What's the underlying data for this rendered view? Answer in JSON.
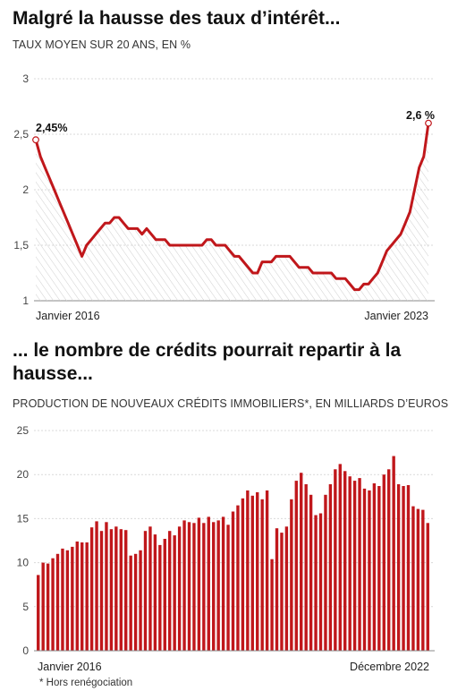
{
  "chart_data": [
    {
      "type": "area",
      "title": "Malgré la hausse des taux d’intérêt...",
      "subtitle": "TAUX MOYEN SUR 20 ANS, EN %",
      "ylim": [
        1,
        3
      ],
      "y_ticks": [
        "3",
        "2,5",
        "2",
        "1,5",
        "1"
      ],
      "x_tick_labels": [
        "Janvier 2016",
        "Janvier 2023"
      ],
      "grid": true,
      "color": "#c0171b",
      "data_labels": {
        "first": "2,45%",
        "last": "2,6 %"
      },
      "series": [
        {
          "values": [
            2.45,
            2.3,
            2.2,
            2.1,
            2.0,
            1.9,
            1.8,
            1.7,
            1.6,
            1.5,
            1.4,
            1.5,
            1.55,
            1.6,
            1.65,
            1.7,
            1.7,
            1.75,
            1.75,
            1.7,
            1.65,
            1.65,
            1.65,
            1.6,
            1.65,
            1.6,
            1.55,
            1.55,
            1.55,
            1.5,
            1.5,
            1.5,
            1.5,
            1.5,
            1.5,
            1.5,
            1.5,
            1.55,
            1.55,
            1.5,
            1.5,
            1.5,
            1.45,
            1.4,
            1.4,
            1.35,
            1.3,
            1.25,
            1.25,
            1.35,
            1.35,
            1.35,
            1.4,
            1.4,
            1.4,
            1.4,
            1.35,
            1.3,
            1.3,
            1.3,
            1.25,
            1.25,
            1.25,
            1.25,
            1.25,
            1.2,
            1.2,
            1.2,
            1.15,
            1.1,
            1.1,
            1.15,
            1.15,
            1.2,
            1.25,
            1.35,
            1.45,
            1.5,
            1.55,
            1.6,
            1.7,
            1.8,
            2.0,
            2.2,
            2.3,
            2.6
          ]
        }
      ]
    },
    {
      "type": "bar",
      "title": "... le nombre de crédits pourrait repartir à la hausse...",
      "subtitle": "PRODUCTION DE NOUVEAUX CRÉDITS IMMOBILIERS*, EN MILLIARDS D’EUROS",
      "ylim": [
        0,
        25
      ],
      "y_ticks": [
        "25",
        "20",
        "15",
        "10",
        "5",
        "0"
      ],
      "x_tick_labels": [
        "Janvier 2016",
        "Décembre 2022"
      ],
      "grid": true,
      "color": "#c0171b",
      "series": [
        {
          "values": [
            8.6,
            10.0,
            9.9,
            10.5,
            11.0,
            11.6,
            11.4,
            11.8,
            12.4,
            12.3,
            12.3,
            14.0,
            14.7,
            13.6,
            14.6,
            13.8,
            14.1,
            13.8,
            13.7,
            10.8,
            11.0,
            11.4,
            13.6,
            14.1,
            13.2,
            12.0,
            12.7,
            13.6,
            13.1,
            14.1,
            14.8,
            14.6,
            14.5,
            15.1,
            14.5,
            15.2,
            14.6,
            14.8,
            15.2,
            14.3,
            15.8,
            16.5,
            17.3,
            18.2,
            17.6,
            18.0,
            17.2,
            18.2,
            10.4,
            13.9,
            13.4,
            14.1,
            17.2,
            19.3,
            20.2,
            18.9,
            17.7,
            15.4,
            15.6,
            17.7,
            18.9,
            20.6,
            21.2,
            20.4,
            19.8,
            19.3,
            19.6,
            18.4,
            18.2,
            19.0,
            18.7,
            20.0,
            20.6,
            22.1,
            18.9,
            18.7,
            18.8,
            16.4,
            16.1,
            16.0,
            14.5
          ]
        }
      ]
    }
  ],
  "footnote": "* Hors renégociation"
}
